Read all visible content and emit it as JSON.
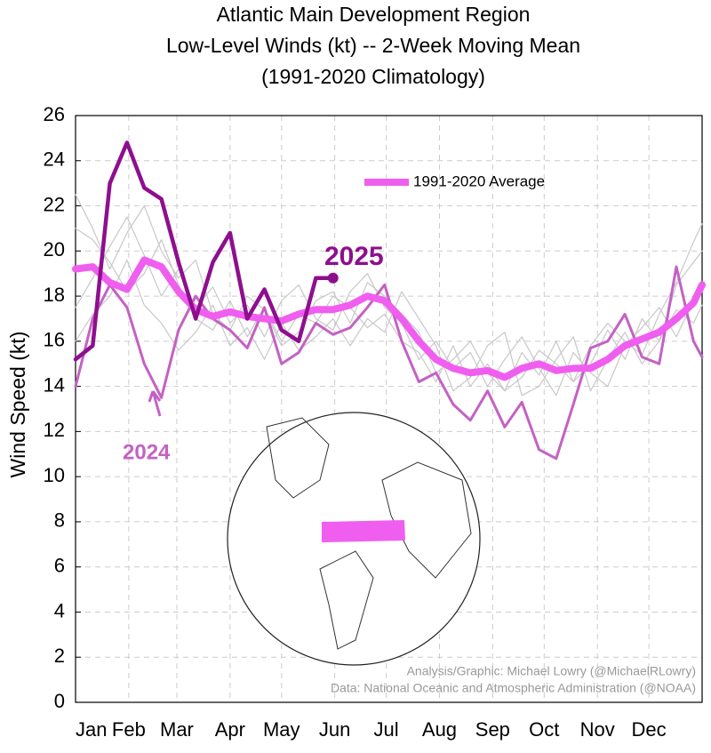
{
  "chart_data": {
    "type": "line",
    "title": [
      "Atlantic Main Development Region",
      "Low-Level Winds (kt) -- 2-Week Moving Mean",
      "(1991-2020 Climatology)"
    ],
    "ylabel": "Wind Speed (kt)",
    "annotations": [
      "Analysis/Graphic: Michael Lowry (@MichaelRLowry)",
      "Data: National Oceanic and Atmospheric Administration (@NOAA)"
    ],
    "x": [
      0,
      10,
      20,
      30,
      40,
      50,
      60,
      70,
      80,
      90,
      100,
      110,
      120,
      130,
      140,
      150,
      160,
      170,
      180,
      190,
      200,
      210,
      220,
      230,
      240,
      250,
      260,
      270,
      280,
      290,
      300,
      310,
      320,
      330,
      340,
      350,
      360,
      365
    ],
    "xlim": [
      0,
      365
    ],
    "xticks": [
      {
        "value": 0,
        "label": "Jan"
      },
      {
        "value": 31,
        "label": "Feb"
      },
      {
        "value": 59,
        "label": "Mar"
      },
      {
        "value": 90,
        "label": "Apr"
      },
      {
        "value": 120,
        "label": "May"
      },
      {
        "value": 151,
        "label": "Jun"
      },
      {
        "value": 181,
        "label": "Jul"
      },
      {
        "value": 212,
        "label": "Aug"
      },
      {
        "value": 243,
        "label": "Sep"
      },
      {
        "value": 273,
        "label": "Oct"
      },
      {
        "value": 304,
        "label": "Nov"
      },
      {
        "value": 334,
        "label": "Dec"
      }
    ],
    "ylim": [
      0,
      26
    ],
    "yticks": [
      0,
      2,
      4,
      6,
      8,
      10,
      12,
      14,
      16,
      18,
      20,
      22,
      24,
      26
    ],
    "grid": true,
    "legend": "upper center",
    "series": [
      {
        "color": "#c8c8c8",
        "values": [
          21,
          20.5,
          19.5,
          18.2,
          19.0,
          20.5,
          18.5,
          17.0,
          16.5,
          17.8,
          16.2,
          17.5,
          16.0,
          17.2,
          16.8,
          18.0,
          17.5,
          16.6,
          17.2,
          16.0,
          15.5,
          14.2,
          15.8,
          14.0,
          15.0,
          13.8,
          15.5,
          14.5,
          16.0,
          14.2,
          15.0,
          16.5,
          15.2,
          17.0,
          16.0,
          18.5,
          19.5,
          20.0
        ]
      },
      {
        "color": "#c8c8c8",
        "values": [
          17.5,
          18.8,
          20.2,
          21.5,
          19.8,
          18.0,
          19.2,
          17.5,
          18.4,
          16.8,
          17.6,
          16.2,
          17.8,
          18.5,
          17.0,
          16.5,
          18.2,
          19.0,
          17.5,
          16.8,
          15.2,
          16.0,
          14.8,
          15.5,
          14.0,
          15.2,
          16.2,
          14.8,
          13.6,
          15.5,
          14.6,
          14.0,
          15.8,
          16.6,
          17.5,
          16.2,
          17.8,
          18.2
        ]
      },
      {
        "color": "#c8c8c8",
        "values": [
          22.5,
          21.0,
          19.2,
          20.8,
          22.0,
          20.0,
          18.8,
          19.6,
          17.2,
          16.5,
          18.0,
          17.4,
          15.8,
          16.4,
          17.8,
          18.2,
          16.8,
          18.6,
          18.0,
          17.2,
          16.4,
          14.6,
          15.2,
          16.0,
          14.6,
          13.8,
          14.4,
          15.6,
          15.0,
          14.2,
          15.8,
          16.8,
          16.0,
          15.4,
          17.2,
          18.6,
          20.4,
          21.2
        ]
      },
      {
        "color": "#c8c8c8",
        "values": [
          16.0,
          17.2,
          18.0,
          19.6,
          17.6,
          16.8,
          15.6,
          16.4,
          17.6,
          15.8,
          16.6,
          15.2,
          16.8,
          15.6,
          16.2,
          17.0,
          15.8,
          17.0,
          16.4,
          18.2,
          17.0,
          15.8,
          13.8,
          14.4,
          15.8,
          16.4,
          13.6,
          14.0,
          15.2,
          16.2,
          13.8,
          15.2,
          16.4,
          15.0,
          16.0,
          17.4,
          16.8,
          17.6
        ]
      },
      {
        "name": "2024",
        "color": "#c461c4",
        "width": 3,
        "values": [
          14.0,
          17.0,
          18.5,
          17.5,
          15.0,
          13.5,
          16.5,
          18.0,
          17.0,
          16.5,
          15.7,
          17.5,
          15.0,
          15.5,
          16.8,
          16.3,
          16.6,
          17.5,
          18.5,
          16.0,
          14.2,
          14.6,
          13.2,
          12.5,
          13.8,
          12.2,
          13.3,
          11.2,
          10.8,
          13.2,
          15.7,
          16.0,
          17.2,
          15.3,
          15.0,
          19.3,
          16.0,
          15.3
        ]
      },
      {
        "name": "1991-2020 Average",
        "color": "#f05ef0",
        "width": 8,
        "legend": true,
        "values": [
          19.2,
          19.3,
          18.6,
          18.3,
          19.6,
          19.3,
          18.2,
          17.4,
          17.1,
          17.3,
          17.1,
          17.0,
          16.9,
          17.2,
          17.4,
          17.4,
          17.6,
          18.0,
          17.8,
          17.0,
          16.0,
          15.2,
          14.8,
          14.6,
          14.7,
          14.4,
          14.8,
          15.0,
          14.7,
          14.8,
          14.8,
          15.2,
          15.8,
          16.1,
          16.4,
          17.0,
          17.7,
          18.5
        ]
      },
      {
        "name": "2025",
        "color": "#8e0f8e",
        "width": 4.5,
        "values": [
          15.2,
          15.8,
          23.0,
          24.8,
          22.8,
          22.3,
          19.5,
          17.0,
          19.5,
          20.8,
          17.0,
          18.3,
          16.5,
          16.0,
          18.8,
          18.8,
          null,
          null,
          null,
          null,
          null,
          null,
          null,
          null,
          null,
          null,
          null,
          null,
          null,
          null,
          null,
          null,
          null,
          null,
          null,
          null,
          null,
          null
        ]
      }
    ]
  }
}
